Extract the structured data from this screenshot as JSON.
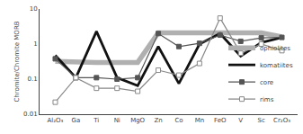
{
  "chart_data": {
    "type": "line",
    "categories": [
      "Al₂O₃",
      "Ga",
      "Ti",
      "Ni",
      "MgO",
      "Zn",
      "Co",
      "Mn",
      "FeO",
      "V",
      "Sc",
      "Cr₂O₃"
    ],
    "series": [
      {
        "name": "ophiolites",
        "color": "#b0b0b0",
        "values": [
          0.32,
          0.3,
          0.3,
          0.3,
          0.3,
          2.1,
          2.1,
          2.1,
          2.1,
          2.1,
          2.1,
          1.6
        ]
      },
      {
        "name": "komatiites",
        "color": "#111111",
        "values": [
          0.48,
          0.11,
          2.3,
          0.11,
          0.065,
          0.85,
          0.075,
          1.0,
          2.0,
          0.45,
          1.1,
          1.55
        ]
      },
      {
        "name": "core",
        "color": "#555555",
        "marker": "square",
        "values": [
          0.38,
          0.11,
          0.11,
          0.1,
          0.11,
          2.0,
          0.85,
          1.05,
          1.8,
          1.2,
          1.5,
          1.55
        ]
      },
      {
        "name": "rims",
        "color": "#888888",
        "marker": "square-open",
        "values": [
          0.022,
          0.11,
          0.055,
          0.055,
          0.045,
          0.18,
          0.13,
          0.28,
          5.5,
          0.55,
          1.0,
          0.65
        ]
      }
    ],
    "ylabel": "Chromite/Chromite MORB",
    "ylim": [
      0.01,
      10
    ],
    "yticks": [
      0.01,
      0.1,
      1,
      10
    ],
    "log": "y",
    "grid": false,
    "legend": "lower right"
  }
}
